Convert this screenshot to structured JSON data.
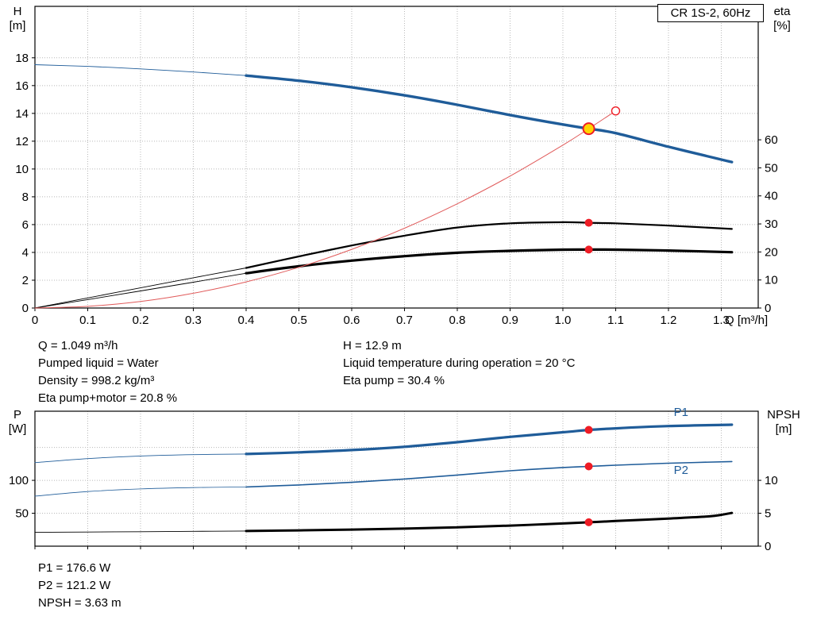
{
  "title_box": {
    "label": "CR 1S-2, 60Hz"
  },
  "colors": {
    "blue": "#1f5c99",
    "black": "#000000",
    "red": "#e05a5a",
    "marker_red": "#ee1c25",
    "yellow": "#ffd400",
    "white": "#ffffff",
    "grid": "#b8b8b8"
  },
  "mid_annotations": {
    "left": [
      "Q = 1.049 m³/h",
      "Pumped liquid = Water",
      "Density = 998.2 kg/m³",
      "Eta pump+motor = 20.8 %"
    ],
    "right": [
      "H = 12.9 m",
      "Liquid temperature during operation = 20 °C",
      "Eta pump = 30.4 %"
    ]
  },
  "bottom_annotations": [
    "P1 = 176.6 W",
    "P2 = 121.2 W",
    "NPSH = 3.63 m"
  ],
  "chart_data": [
    {
      "type": "line",
      "title": "CR 1S-2, 60Hz",
      "xlabel": "Q [m³/h]",
      "ylabel_left": [
        "H",
        "[m]"
      ],
      "ylabel_right": [
        "eta",
        "[%]"
      ],
      "xlim": [
        0,
        1.37
      ],
      "ylim_left": [
        0,
        21.7
      ],
      "ylim_right": [
        0,
        107.6
      ],
      "x_ticks": [
        0,
        0.1,
        0.2,
        0.3,
        0.4,
        0.5,
        0.6,
        0.7,
        0.8,
        0.9,
        1.0,
        1.1,
        1.2,
        1.3
      ],
      "x_tick_labels": [
        "0",
        "0.1",
        "0.2",
        "0.3",
        "0.4",
        "0.5",
        "0.6",
        "0.7",
        "0.8",
        "0.9",
        "1.0",
        "1.1",
        "1.2",
        "1.3"
      ],
      "y_ticks_left": [
        0,
        2,
        4,
        6,
        8,
        10,
        12,
        14,
        16,
        18
      ],
      "y_ticks_right": [
        0,
        10,
        20,
        30,
        40,
        50,
        60
      ],
      "grid_y_values": [
        2,
        4,
        6,
        8,
        10,
        12,
        14,
        16,
        18
      ],
      "series": [
        {
          "name": "head-curve",
          "axis": "left",
          "color": "blue",
          "width": 3.4,
          "width_thin": 0.9,
          "split_x": 0.4,
          "points": [
            [
              0,
              17.5
            ],
            [
              0.1,
              17.38
            ],
            [
              0.2,
              17.2
            ],
            [
              0.3,
              16.98
            ],
            [
              0.4,
              16.72
            ],
            [
              0.5,
              16.35
            ],
            [
              0.6,
              15.88
            ],
            [
              0.7,
              15.3
            ],
            [
              0.8,
              14.62
            ],
            [
              0.9,
              13.88
            ],
            [
              1.0,
              13.2
            ],
            [
              1.049,
              12.9
            ],
            [
              1.1,
              12.58
            ],
            [
              1.2,
              11.6
            ],
            [
              1.3,
              10.68
            ],
            [
              1.32,
              10.5
            ]
          ]
        },
        {
          "name": "eta-pump-curve",
          "axis": "right",
          "color": "black",
          "width": 2.2,
          "width_thin": 0.9,
          "split_x": 0.4,
          "points": [
            [
              0,
              0
            ],
            [
              0.1,
              3.6
            ],
            [
              0.2,
              7.2
            ],
            [
              0.3,
              10.8
            ],
            [
              0.4,
              14.3
            ],
            [
              0.5,
              18.4
            ],
            [
              0.6,
              22.3
            ],
            [
              0.7,
              25.8
            ],
            [
              0.8,
              28.7
            ],
            [
              0.9,
              30.2
            ],
            [
              1.0,
              30.6
            ],
            [
              1.049,
              30.4
            ],
            [
              1.1,
              30.2
            ],
            [
              1.2,
              29.4
            ],
            [
              1.32,
              28.2
            ]
          ]
        },
        {
          "name": "eta-pump-motor-curve",
          "axis": "right",
          "color": "black",
          "width": 3.2,
          "width_thin": 0.9,
          "split_x": 0.4,
          "points": [
            [
              0,
              0
            ],
            [
              0.1,
              3.0
            ],
            [
              0.2,
              6.1
            ],
            [
              0.3,
              9.2
            ],
            [
              0.4,
              12.4
            ],
            [
              0.5,
              14.9
            ],
            [
              0.6,
              16.9
            ],
            [
              0.7,
              18.5
            ],
            [
              0.8,
              19.7
            ],
            [
              0.9,
              20.4
            ],
            [
              1.0,
              20.8
            ],
            [
              1.049,
              20.85
            ],
            [
              1.1,
              20.8
            ],
            [
              1.2,
              20.5
            ],
            [
              1.32,
              19.9
            ]
          ]
        },
        {
          "name": "system-curve",
          "axis": "left",
          "color": "red",
          "width": 1,
          "points": [
            [
              0,
              0
            ],
            [
              0.1,
              0.12
            ],
            [
              0.2,
              0.47
            ],
            [
              0.3,
              1.06
            ],
            [
              0.4,
              1.88
            ],
            [
              0.5,
              2.93
            ],
            [
              0.6,
              4.22
            ],
            [
              0.7,
              5.74
            ],
            [
              0.8,
              7.5
            ],
            [
              0.9,
              9.49
            ],
            [
              1.0,
              11.72
            ],
            [
              1.049,
              12.9
            ],
            [
              1.1,
              14.18
            ]
          ]
        }
      ],
      "markers": [
        {
          "name": "duty-point-actual",
          "x": 1.049,
          "y": 12.9,
          "axis": "left",
          "r": 7,
          "fill": "yellow",
          "stroke": "marker_red",
          "sw": 2
        },
        {
          "name": "duty-point-requested",
          "x": 1.1,
          "y": 14.18,
          "axis": "left",
          "r": 5,
          "fill": "white",
          "stroke": "marker_red",
          "sw": 1.4
        },
        {
          "name": "eta-pump-point",
          "x": 1.049,
          "y": 30.4,
          "axis": "right",
          "r": 5,
          "fill": "marker_red"
        },
        {
          "name": "eta-pump-motor-point",
          "x": 1.049,
          "y": 20.85,
          "axis": "right",
          "r": 5,
          "fill": "marker_red"
        }
      ],
      "labels": []
    },
    {
      "type": "line",
      "title": "",
      "xlabel": "",
      "ylabel_left": [
        "P",
        "[W]"
      ],
      "ylabel_right": [
        "NPSH",
        "[m]"
      ],
      "xlim": [
        0,
        1.37
      ],
      "ylim_left": [
        0,
        205
      ],
      "ylim_right": [
        0,
        20.5
      ],
      "x_ticks": [
        0,
        0.1,
        0.2,
        0.3,
        0.4,
        0.5,
        0.6,
        0.7,
        0.8,
        0.9,
        1.0,
        1.1,
        1.2,
        1.3
      ],
      "x_tick_labels": [],
      "y_ticks_left": [
        50,
        100
      ],
      "y_ticks_right": [
        0,
        5,
        10
      ],
      "grid_y_values": [
        50,
        100,
        150
      ],
      "series": [
        {
          "name": "p1-curve",
          "axis": "left",
          "color": "blue",
          "width": 3.2,
          "width_thin": 0.9,
          "split_x": 0.4,
          "points": [
            [
              0,
              127
            ],
            [
              0.1,
              133
            ],
            [
              0.2,
              137
            ],
            [
              0.3,
              139
            ],
            [
              0.4,
              140
            ],
            [
              0.5,
              142.5
            ],
            [
              0.6,
              146
            ],
            [
              0.7,
              151
            ],
            [
              0.8,
              158
            ],
            [
              0.9,
              166
            ],
            [
              1.0,
              173
            ],
            [
              1.049,
              176.6
            ],
            [
              1.1,
              179
            ],
            [
              1.2,
              182.5
            ],
            [
              1.32,
              184.5
            ]
          ]
        },
        {
          "name": "p2-curve",
          "axis": "left",
          "color": "blue",
          "width": 1.6,
          "width_thin": 0.8,
          "split_x": 0.4,
          "points": [
            [
              0,
              76
            ],
            [
              0.1,
              83
            ],
            [
              0.2,
              87
            ],
            [
              0.3,
              89
            ],
            [
              0.4,
              90
            ],
            [
              0.5,
              93
            ],
            [
              0.6,
              97
            ],
            [
              0.7,
              102
            ],
            [
              0.8,
              108
            ],
            [
              0.9,
              114.5
            ],
            [
              1.0,
              119.5
            ],
            [
              1.049,
              121.2
            ],
            [
              1.1,
              123
            ],
            [
              1.2,
              126
            ],
            [
              1.32,
              128.5
            ]
          ]
        },
        {
          "name": "npsh-curve",
          "axis": "right",
          "color": "black",
          "width": 3,
          "width_thin": 0.9,
          "split_x": 0.4,
          "points": [
            [
              0,
              2.1
            ],
            [
              0.1,
              2.15
            ],
            [
              0.2,
              2.2
            ],
            [
              0.3,
              2.25
            ],
            [
              0.4,
              2.3
            ],
            [
              0.5,
              2.4
            ],
            [
              0.6,
              2.52
            ],
            [
              0.7,
              2.67
            ],
            [
              0.8,
              2.87
            ],
            [
              0.9,
              3.12
            ],
            [
              1.0,
              3.45
            ],
            [
              1.049,
              3.63
            ],
            [
              1.1,
              3.82
            ],
            [
              1.2,
              4.2
            ],
            [
              1.28,
              4.55
            ],
            [
              1.32,
              5.05
            ]
          ]
        }
      ],
      "markers": [
        {
          "name": "p1-point",
          "x": 1.049,
          "y": 176.6,
          "axis": "left",
          "r": 5,
          "fill": "marker_red"
        },
        {
          "name": "p2-point",
          "x": 1.049,
          "y": 121.2,
          "axis": "left",
          "r": 5,
          "fill": "marker_red"
        },
        {
          "name": "npsh-point",
          "x": 1.049,
          "y": 3.63,
          "axis": "right",
          "r": 5,
          "fill": "marker_red"
        }
      ],
      "labels": [
        {
          "text": "P1",
          "x": 1.21,
          "y": 198,
          "axis": "left",
          "color": "blue"
        },
        {
          "text": "P2",
          "x": 1.21,
          "y": 110,
          "axis": "left",
          "color": "blue"
        }
      ]
    }
  ]
}
